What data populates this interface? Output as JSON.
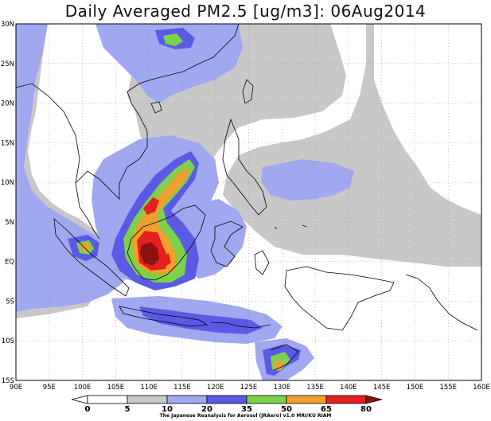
{
  "title": "Daily Averaged PM2.5 [ug/m3]: 06Aug2014",
  "map": {
    "lon_range": [
      90,
      160
    ],
    "lat_range": [
      -15,
      30
    ],
    "lon_ticks": [
      "90E",
      "95E",
      "100E",
      "105E",
      "110E",
      "115E",
      "120E",
      "125E",
      "130E",
      "135E",
      "140E",
      "145E",
      "150E",
      "155E",
      "160E"
    ],
    "lat_ticks": [
      "30N",
      "25N",
      "20N",
      "15N",
      "10N",
      "5N",
      "EQ",
      "5S",
      "10S",
      "15S"
    ],
    "grid": true,
    "region": "Southeast Asia / Maritime Continent"
  },
  "colorbar": {
    "levels": [
      "0",
      "5",
      "10",
      "20",
      "35",
      "50",
      "65",
      "80"
    ],
    "colors": [
      "#ffffff",
      "#ffffff",
      "#c8c8c8",
      "#a0a8f0",
      "#5a5ae6",
      "#7cd24a",
      "#f0a030",
      "#e61e1e",
      "#8c1010"
    ]
  },
  "credit": "The Japanese Reanalysis for Aerosol (JRAero) v1.0 MRI/KU RIAM",
  "colors": {
    "gray": "#c8c8c8",
    "lightblue": "#a0a8f0",
    "blue": "#5a5ae6",
    "green": "#7cd24a",
    "orange": "#f0a030",
    "red": "#e61e1e",
    "darkred": "#8c1010"
  }
}
